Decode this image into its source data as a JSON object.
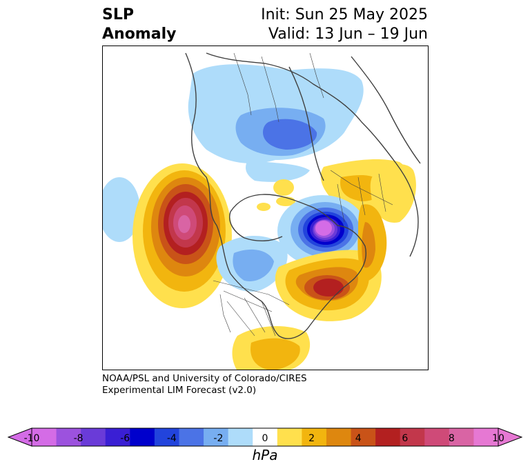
{
  "title": {
    "left_line1": "SLP",
    "left_line2": "Anomaly",
    "right_line1": "Init: Sun 25 May 2025",
    "right_line2": "Valid: 13 Jun – 19 Jun"
  },
  "credit": {
    "line1": "NOAA/PSL and University of Colorado/CIRES",
    "line2": "Experimental LIM Forecast (v2.0)"
  },
  "colorbar": {
    "units": "hPa",
    "ticks": [
      "-10",
      "-8",
      "-6",
      "-4",
      "-2",
      "0",
      "2",
      "4",
      "6",
      "8",
      "10"
    ],
    "levels": [
      -10,
      -9,
      -8,
      -7,
      -6,
      -5,
      -4,
      -3,
      -2,
      -1,
      1,
      2,
      3,
      4,
      5,
      6,
      7,
      8,
      9,
      10
    ],
    "colors": [
      "#d46ce6",
      "#9c52de",
      "#6a3bd8",
      "#3a1fd4",
      "#0000cc",
      "#2244dc",
      "#4b73e6",
      "#77aef1",
      "#aedcfa",
      "#ffffff",
      "#ffe04d",
      "#f2b50f",
      "#de870f",
      "#c95318",
      "#b32020",
      "#c2374b",
      "#cf4a78",
      "#d964a4",
      "#e678d3"
    ],
    "under_color": "#d46ce6",
    "over_color": "#e678d3",
    "extend": "both"
  },
  "map": {
    "projection": "north-polar-stereographic",
    "field": "sea-level-pressure-anomaly"
  }
}
